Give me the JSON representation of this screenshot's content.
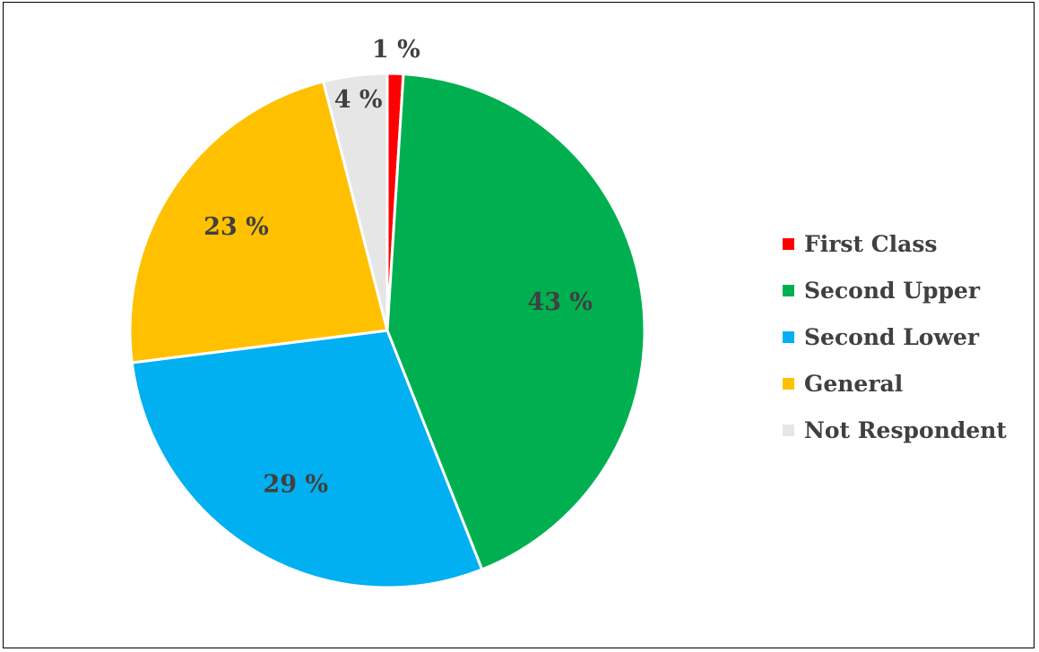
{
  "chart_data": {
    "type": "pie",
    "title": "",
    "categories": [
      "First Class",
      "Second Upper",
      "Second Lower",
      "General",
      "Not Respondent"
    ],
    "values": [
      1,
      43,
      29,
      23,
      4
    ],
    "labels": [
      "1 %",
      "43 %",
      "29 %",
      "23 %",
      "4 %"
    ],
    "colors": [
      "#FF0000",
      "#00B050",
      "#00B0F0",
      "#FFC000",
      "#E7E6E6"
    ],
    "legend_position": "right"
  }
}
